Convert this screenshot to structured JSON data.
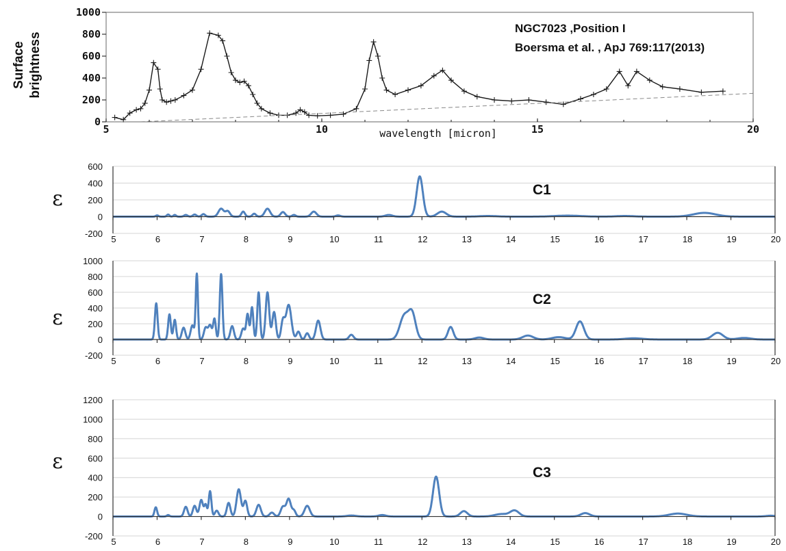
{
  "chart_data": [
    {
      "type": "line",
      "id": "observed",
      "annotation": [
        "NGC7023 ,Position I",
        "Boersma et al. , ApJ 769:117(2013)"
      ],
      "ylabel": [
        "Surface",
        "brightness"
      ],
      "xlabel": "wavelength [micron]",
      "xlim": [
        5,
        20
      ],
      "ylim": [
        0,
        1000
      ],
      "xticks": [
        5,
        10,
        15,
        20
      ],
      "yticks": [
        0,
        200,
        400,
        600,
        800,
        1000
      ],
      "series": [
        {
          "color": "#1a1a1a",
          "markers": "+",
          "x": [
            5.2,
            5.4,
            5.55,
            5.7,
            5.8,
            5.9,
            6.0,
            6.1,
            6.2,
            6.25,
            6.3,
            6.4,
            6.5,
            6.6,
            6.8,
            7.0,
            7.2,
            7.4,
            7.6,
            7.7,
            7.8,
            7.9,
            8.0,
            8.1,
            8.2,
            8.3,
            8.4,
            8.5,
            8.6,
            8.8,
            9.0,
            9.2,
            9.4,
            9.5,
            9.6,
            9.7,
            9.9,
            10.2,
            10.5,
            10.8,
            11.0,
            11.1,
            11.2,
            11.3,
            11.4,
            11.5,
            11.7,
            12.0,
            12.3,
            12.6,
            12.8,
            13.0,
            13.3,
            13.6,
            14.0,
            14.4,
            14.8,
            15.2,
            15.6,
            16.0,
            16.3,
            16.6,
            16.9,
            17.1,
            17.3,
            17.6,
            17.9,
            18.3,
            18.8,
            19.3
          ],
          "y": [
            40,
            20,
            80,
            110,
            120,
            170,
            290,
            540,
            480,
            300,
            200,
            180,
            190,
            200,
            240,
            290,
            480,
            810,
            790,
            740,
            600,
            450,
            380,
            360,
            370,
            330,
            250,
            170,
            120,
            80,
            60,
            60,
            80,
            110,
            90,
            60,
            55,
            60,
            70,
            120,
            300,
            560,
            730,
            600,
            400,
            290,
            250,
            290,
            330,
            420,
            470,
            380,
            280,
            230,
            200,
            190,
            200,
            180,
            160,
            210,
            250,
            300,
            460,
            330,
            460,
            380,
            320,
            300,
            270,
            280
          ]
        },
        {
          "color": "#888888",
          "style": "dashed",
          "name": "baseline",
          "x": [
            5.8,
            20
          ],
          "y": [
            0,
            260
          ]
        }
      ]
    },
    {
      "type": "line",
      "id": "C1",
      "label": "C1",
      "ylabel": "ε",
      "xlim": [
        5,
        20
      ],
      "ylim": [
        -200,
        600
      ],
      "xticks": [
        5,
        6,
        7,
        8,
        9,
        10,
        11,
        12,
        13,
        14,
        15,
        16,
        17,
        18,
        19,
        20
      ],
      "yticks": [
        -200,
        0,
        200,
        400,
        600
      ],
      "color": "#4f81bd",
      "peaks": [
        [
          6.0,
          15,
          0.03
        ],
        [
          6.25,
          25,
          0.03
        ],
        [
          6.4,
          20,
          0.03
        ],
        [
          6.65,
          20,
          0.04
        ],
        [
          6.85,
          25,
          0.04
        ],
        [
          7.05,
          30,
          0.04
        ],
        [
          7.45,
          95,
          0.06
        ],
        [
          7.6,
          65,
          0.05
        ],
        [
          7.95,
          60,
          0.04
        ],
        [
          8.2,
          35,
          0.04
        ],
        [
          8.5,
          95,
          0.06
        ],
        [
          8.85,
          55,
          0.05
        ],
        [
          9.1,
          20,
          0.04
        ],
        [
          9.55,
          60,
          0.06
        ],
        [
          10.1,
          15,
          0.05
        ],
        [
          11.25,
          20,
          0.08
        ],
        [
          11.95,
          480,
          0.07
        ],
        [
          12.45,
          60,
          0.1
        ],
        [
          13.5,
          8,
          0.2
        ],
        [
          15.3,
          12,
          0.3
        ],
        [
          16.6,
          8,
          0.2
        ],
        [
          18.4,
          45,
          0.25
        ]
      ]
    },
    {
      "type": "line",
      "id": "C2",
      "label": "C2",
      "ylabel": "ε",
      "xlim": [
        5,
        20
      ],
      "ylim": [
        -200,
        1000
      ],
      "xticks": [
        5,
        6,
        7,
        8,
        9,
        10,
        11,
        12,
        13,
        14,
        15,
        16,
        17,
        18,
        19,
        20
      ],
      "yticks": [
        -200,
        0,
        200,
        400,
        600,
        800,
        1000
      ],
      "color": "#4f81bd",
      "peaks": [
        [
          5.98,
          460,
          0.03
        ],
        [
          6.28,
          320,
          0.03
        ],
        [
          6.4,
          250,
          0.03
        ],
        [
          6.6,
          150,
          0.04
        ],
        [
          6.8,
          180,
          0.04
        ],
        [
          6.9,
          830,
          0.025
        ],
        [
          7.1,
          150,
          0.04
        ],
        [
          7.2,
          180,
          0.04
        ],
        [
          7.3,
          260,
          0.03
        ],
        [
          7.45,
          830,
          0.03
        ],
        [
          7.7,
          170,
          0.04
        ],
        [
          7.95,
          140,
          0.04
        ],
        [
          8.05,
          320,
          0.03
        ],
        [
          8.15,
          410,
          0.03
        ],
        [
          8.3,
          600,
          0.03
        ],
        [
          8.5,
          600,
          0.04
        ],
        [
          8.65,
          350,
          0.04
        ],
        [
          8.85,
          230,
          0.04
        ],
        [
          8.98,
          440,
          0.06
        ],
        [
          9.2,
          100,
          0.04
        ],
        [
          9.4,
          80,
          0.04
        ],
        [
          9.65,
          240,
          0.05
        ],
        [
          10.4,
          60,
          0.05
        ],
        [
          11.6,
          300,
          0.1
        ],
        [
          11.78,
          310,
          0.08
        ],
        [
          12.65,
          160,
          0.06
        ],
        [
          13.3,
          25,
          0.1
        ],
        [
          14.4,
          50,
          0.12
        ],
        [
          15.1,
          30,
          0.15
        ],
        [
          15.58,
          230,
          0.09
        ],
        [
          16.8,
          15,
          0.2
        ],
        [
          18.7,
          85,
          0.12
        ],
        [
          19.3,
          20,
          0.15
        ]
      ]
    },
    {
      "type": "line",
      "id": "C3",
      "label": "C3",
      "ylabel": "ε",
      "xlim": [
        5,
        20
      ],
      "ylim": [
        -200,
        1200
      ],
      "xticks": [
        5,
        6,
        7,
        8,
        9,
        10,
        11,
        12,
        13,
        14,
        15,
        16,
        17,
        18,
        19,
        20
      ],
      "yticks": [
        -200,
        0,
        200,
        400,
        600,
        800,
        1000,
        1200
      ],
      "color": "#4f81bd",
      "peaks": [
        [
          5.97,
          95,
          0.03
        ],
        [
          6.25,
          15,
          0.03
        ],
        [
          6.65,
          100,
          0.04
        ],
        [
          6.85,
          110,
          0.04
        ],
        [
          7.0,
          170,
          0.04
        ],
        [
          7.1,
          120,
          0.03
        ],
        [
          7.2,
          260,
          0.03
        ],
        [
          7.35,
          60,
          0.04
        ],
        [
          7.62,
          140,
          0.04
        ],
        [
          7.85,
          280,
          0.05
        ],
        [
          8.0,
          160,
          0.04
        ],
        [
          8.3,
          120,
          0.05
        ],
        [
          8.6,
          40,
          0.05
        ],
        [
          8.85,
          100,
          0.05
        ],
        [
          8.98,
          180,
          0.05
        ],
        [
          9.1,
          60,
          0.04
        ],
        [
          9.4,
          110,
          0.06
        ],
        [
          10.4,
          10,
          0.1
        ],
        [
          11.1,
          15,
          0.08
        ],
        [
          12.32,
          410,
          0.07
        ],
        [
          12.95,
          55,
          0.08
        ],
        [
          13.8,
          25,
          0.15
        ],
        [
          14.1,
          60,
          0.1
        ],
        [
          15.7,
          35,
          0.1
        ],
        [
          17.8,
          30,
          0.2
        ],
        [
          19.9,
          8,
          0.1
        ]
      ]
    }
  ]
}
